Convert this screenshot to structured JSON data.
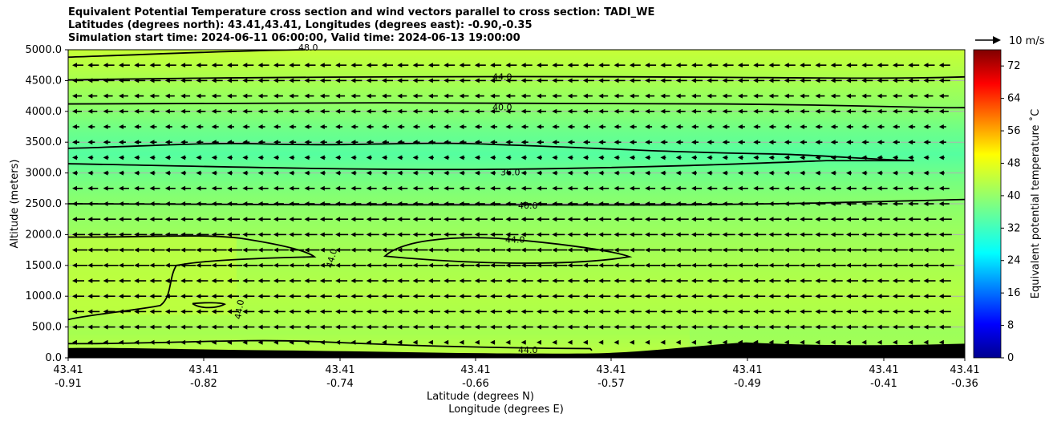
{
  "title_lines": [
    "Equivalent Potential Temperature cross section and wind vectors parallel to cross section: TADI_WE",
    "Latitudes (degrees north): 43.41,43.41, Longitudes (degrees east): -0.90,-0.35",
    "Simulation start time: 2024-06-11 06:00:00, Valid time: 2024-06-13 19:00:00"
  ],
  "chart_data": {
    "type": "heatmap",
    "title": "Equivalent Potential Temperature cross section and wind vectors parallel to cross section: TADI_WE",
    "ylabel": "Altitude (meters)",
    "xlabel_lines": [
      "Latitude (degrees N)",
      "Longitude (degrees E)"
    ],
    "ylim": [
      0,
      5000
    ],
    "y_ticks": [
      "0.0",
      "500.0",
      "1000.0",
      "1500.0",
      "2000.0",
      "2500.0",
      "3000.0",
      "3500.0",
      "4000.0",
      "4500.0",
      "5000.0"
    ],
    "y_tick_values": [
      0,
      500,
      1000,
      1500,
      2000,
      2500,
      3000,
      3500,
      4000,
      4500,
      5000
    ],
    "x_ticks": [
      {
        "lat": "43.41",
        "lon": "-0.91"
      },
      {
        "lat": "43.41",
        "lon": "-0.82"
      },
      {
        "lat": "43.41",
        "lon": "-0.74"
      },
      {
        "lat": "43.41",
        "lon": "-0.66"
      },
      {
        "lat": "43.41",
        "lon": "-0.57"
      },
      {
        "lat": "43.41",
        "lon": "-0.49"
      },
      {
        "lat": "43.41",
        "lon": "-0.41"
      },
      {
        "lat": "43.41",
        "lon": "-0.36"
      }
    ],
    "colorbar": {
      "label": "Equivalent potential temperature ˚C",
      "range": [
        0,
        76
      ],
      "ticks": [
        "0",
        "8",
        "16",
        "24",
        "32",
        "40",
        "48",
        "56",
        "64",
        "72"
      ],
      "tick_values": [
        0,
        8,
        16,
        24,
        32,
        40,
        48,
        56,
        64,
        72
      ],
      "colormap": "jet"
    },
    "contours": [
      {
        "level": "44.0",
        "altitude": 4500
      },
      {
        "level": "40.0",
        "altitude": 4100
      },
      {
        "level": "36.0",
        "altitude": 3150
      },
      {
        "level": "40.0",
        "altitude": 2500
      },
      {
        "level": "44.0",
        "altitude": 1900
      },
      {
        "level": "44.0",
        "altitude": 150
      },
      {
        "level": "48.0",
        "altitude": 5000
      }
    ],
    "grid": true,
    "wind_reference": {
      "label": "10 m/s",
      "speed": 10
    },
    "wind_direction": "westward (toward decreasing longitude)",
    "terrain_color": "#000000"
  }
}
